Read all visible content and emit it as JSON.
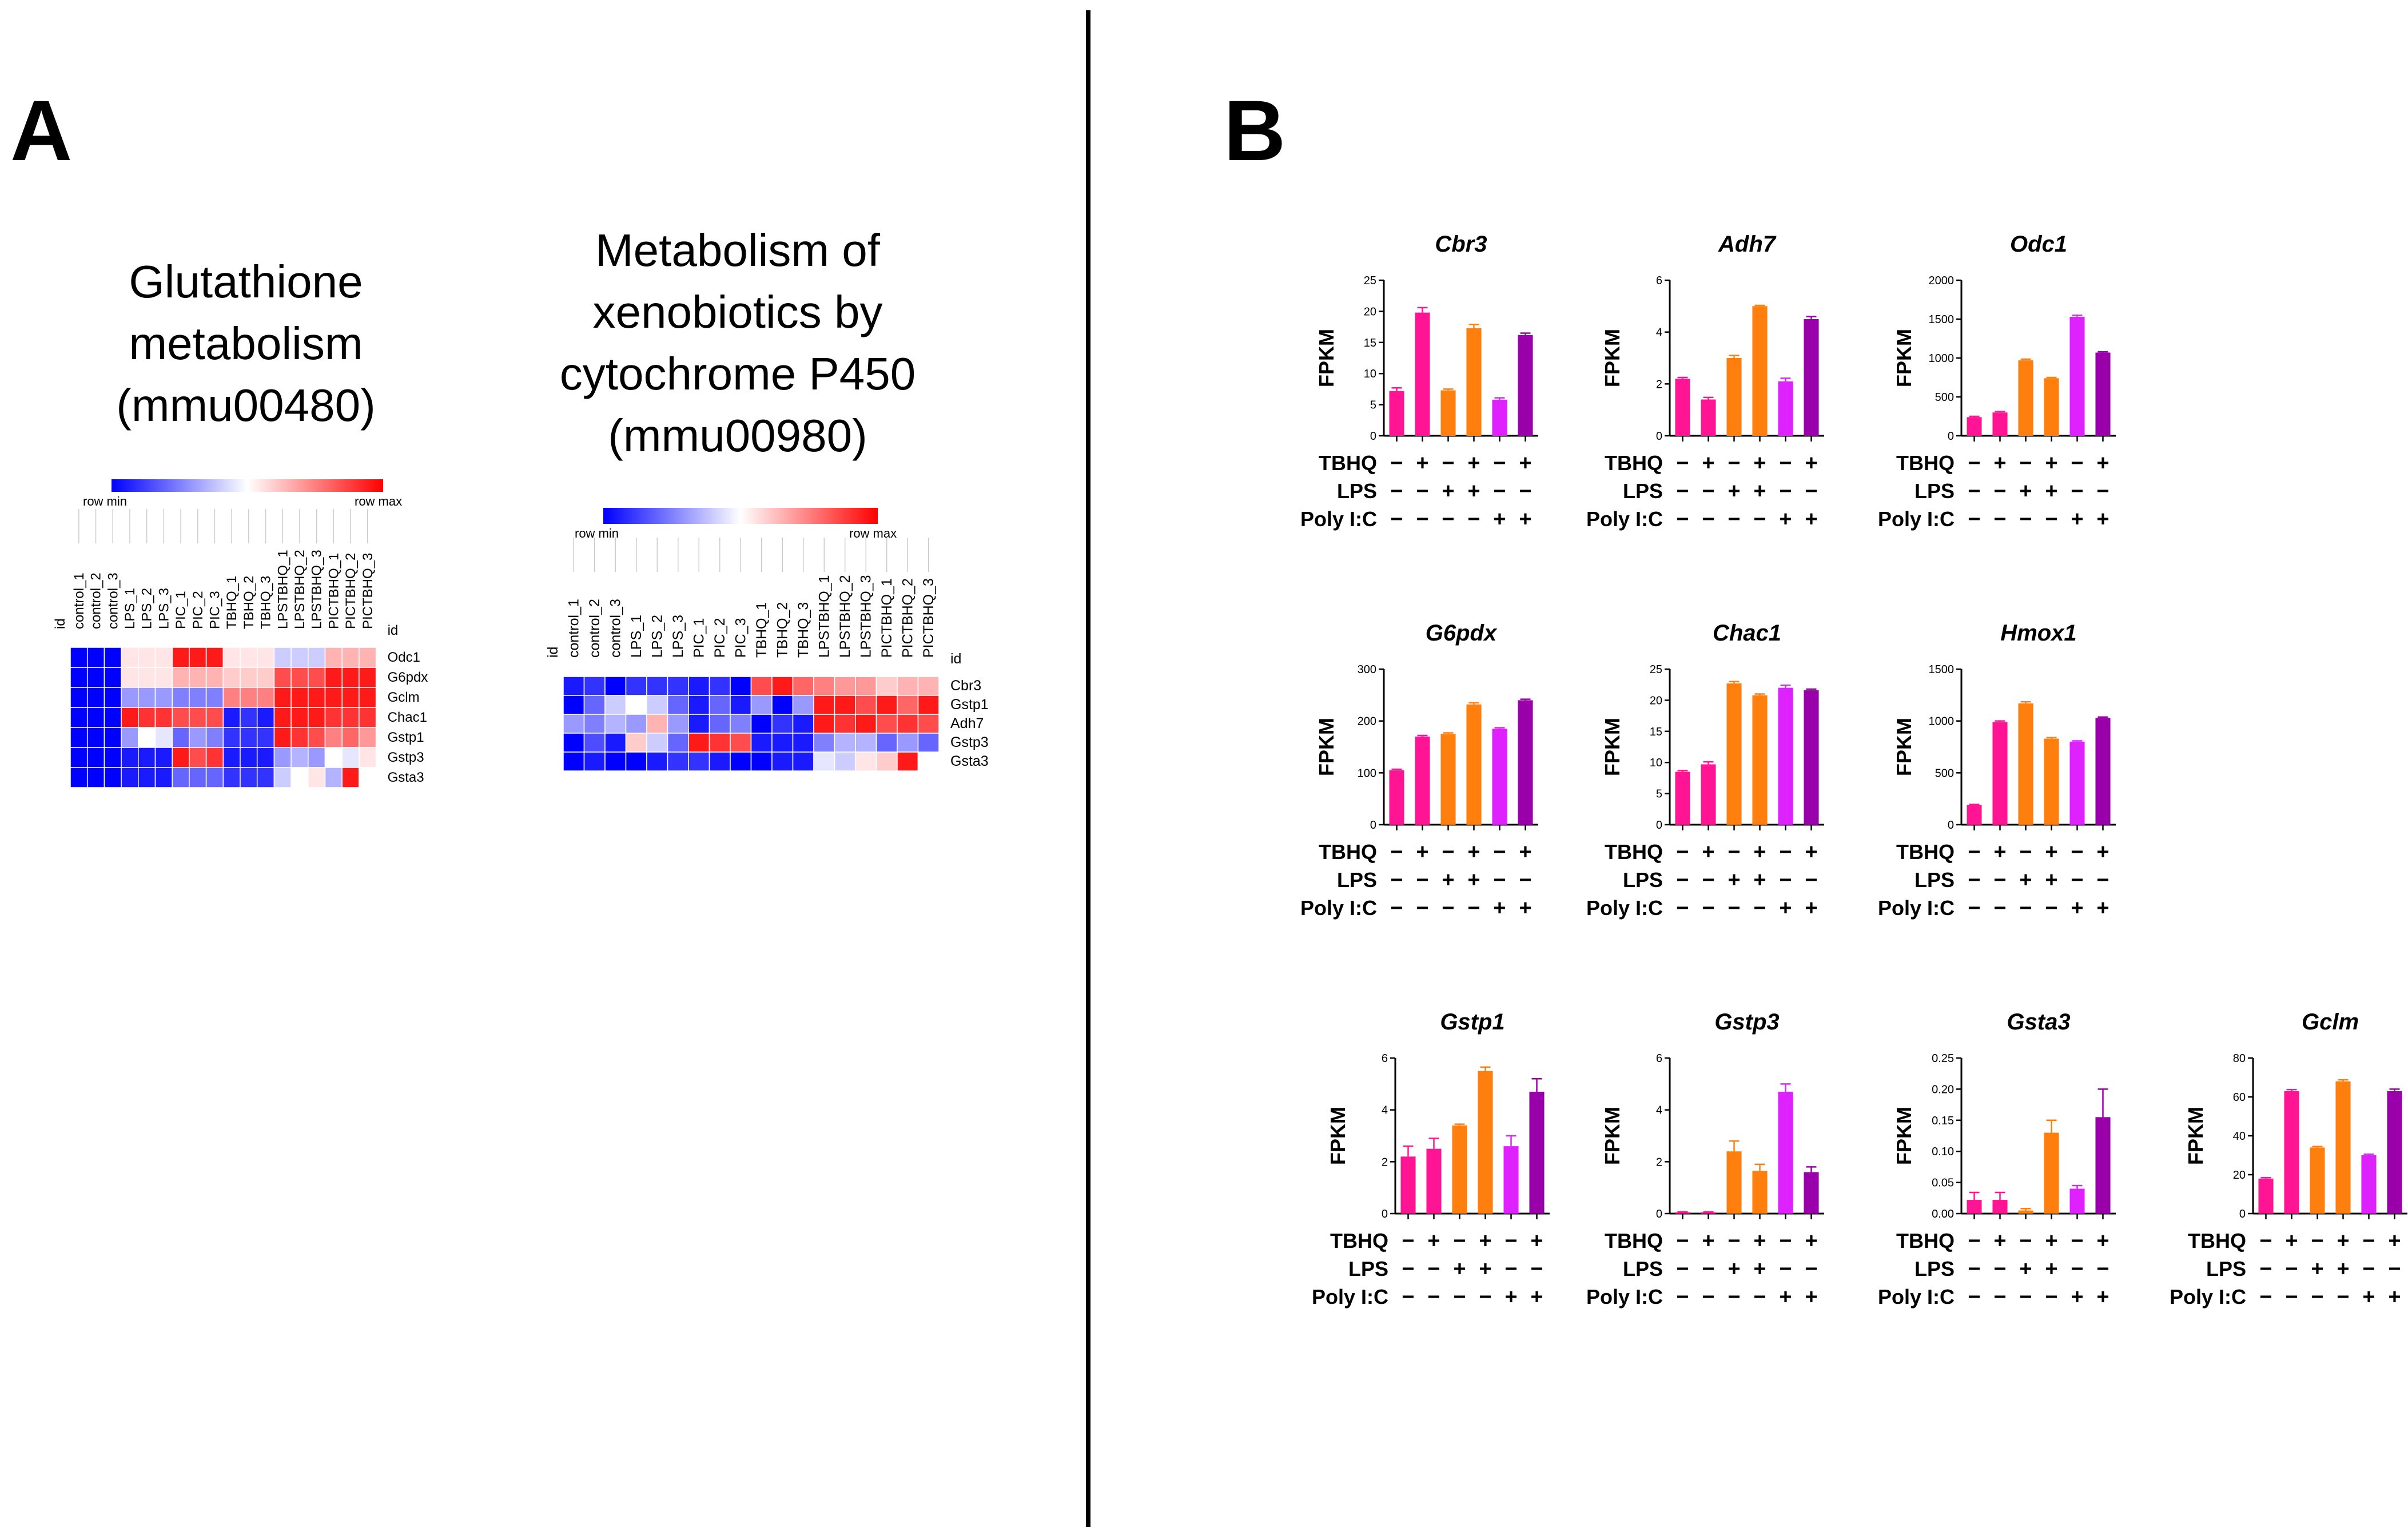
{
  "panels": {
    "a": {
      "letter": "A",
      "heatmaps": [
        {
          "title_lines": [
            "Glutathione",
            "metabolism",
            "(mmu00480)"
          ],
          "legend_min": "row min",
          "legend_max": "row max",
          "id_label": "id",
          "columns": [
            "control_1",
            "control_2",
            "control_3",
            "LPS_1",
            "LPS_2",
            "LPS_3",
            "PIC_1",
            "PIC_2",
            "PIC_3",
            "TBHQ_1",
            "TBHQ_2",
            "TBHQ_3",
            "LPSTBHQ_1",
            "LPSTBHQ_2",
            "LPSTBHQ_3",
            "PICTBHQ_1",
            "PICTBHQ_2",
            "PICTBHQ_3"
          ],
          "rows": [
            "Odc1",
            "G6pdx",
            "Gclm",
            "Chac1",
            "Gstp1",
            "Gstp3",
            "Gsta3"
          ],
          "values": [
            [
              0,
              0,
              0,
              0.55,
              0.55,
              0.55,
              0.95,
              0.95,
              0.95,
              0.55,
              0.55,
              0.55,
              0.4,
              0.4,
              0.4,
              0.65,
              0.65,
              0.65
            ],
            [
              0,
              0,
              0,
              0.55,
              0.55,
              0.55,
              0.65,
              0.65,
              0.65,
              0.6,
              0.6,
              0.6,
              0.85,
              0.85,
              0.85,
              0.95,
              0.95,
              0.95
            ],
            [
              0,
              0,
              0,
              0.3,
              0.3,
              0.3,
              0.25,
              0.25,
              0.25,
              0.75,
              0.75,
              0.75,
              0.95,
              0.95,
              0.95,
              0.95,
              0.95,
              0.95
            ],
            [
              0,
              0,
              0,
              0.95,
              0.9,
              0.9,
              0.85,
              0.85,
              0.85,
              0.05,
              0.1,
              0.05,
              0.95,
              0.95,
              0.95,
              0.9,
              0.9,
              0.9
            ],
            [
              0,
              0,
              0,
              0.3,
              0.5,
              0.45,
              0.2,
              0.3,
              0.25,
              0.1,
              0.1,
              0.1,
              0.95,
              0.9,
              0.85,
              0.75,
              0.8,
              0.7
            ],
            [
              0,
              0,
              0,
              0.05,
              0.05,
              0.05,
              0.95,
              0.85,
              0.9,
              0.05,
              0.05,
              0.05,
              0.3,
              0.35,
              0.3,
              0.5,
              0.45,
              0.55
            ],
            [
              0,
              0,
              0,
              0.05,
              0.05,
              0.05,
              0.2,
              0.2,
              0.2,
              0.1,
              0.1,
              0.1,
              0.4,
              0.5,
              0.55,
              0.35,
              0.95,
              0.5
            ]
          ]
        },
        {
          "title_lines": [
            "Metabolism of",
            "xenobiotics by",
            "cytochrome P450",
            "(mmu00980)"
          ],
          "legend_min": "row min",
          "legend_max": "row max",
          "id_label": "id",
          "columns": [
            "control_1",
            "control_2",
            "control_3",
            "LPS_1",
            "LPS_2",
            "LPS_3",
            "PIC_1",
            "PIC_2",
            "PIC_3",
            "TBHQ_1",
            "TBHQ_2",
            "TBHQ_3",
            "LPSTBHQ_1",
            "LPSTBHQ_2",
            "LPSTBHQ_3",
            "PICTBHQ_1",
            "PICTBHQ_2",
            "PICTBHQ_3"
          ],
          "rows": [
            "Cbr3",
            "Gstp1",
            "Adh7",
            "Gstp3",
            "Gsta3"
          ],
          "values": [
            [
              0.05,
              0.1,
              0.0,
              0.1,
              0.1,
              0.1,
              0.05,
              0.1,
              0.0,
              0.85,
              0.95,
              0.8,
              0.75,
              0.7,
              0.7,
              0.6,
              0.65,
              0.65
            ],
            [
              0.0,
              0.2,
              0.4,
              0.5,
              0.4,
              0.2,
              0.05,
              0.2,
              0.05,
              0.3,
              0.0,
              0.3,
              0.95,
              0.95,
              0.85,
              0.95,
              0.8,
              0.95
            ],
            [
              0.3,
              0.25,
              0.35,
              0.3,
              0.65,
              0.3,
              0.05,
              0.2,
              0.25,
              0.0,
              0.1,
              0.05,
              0.95,
              0.9,
              0.95,
              0.85,
              0.9,
              0.85
            ],
            [
              0.0,
              0.15,
              0.05,
              0.6,
              0.4,
              0.2,
              0.95,
              0.9,
              0.85,
              0.05,
              0.05,
              0.05,
              0.25,
              0.35,
              0.35,
              0.2,
              0.3,
              0.2
            ],
            [
              0.0,
              0.05,
              0.0,
              0.0,
              0.05,
              0.1,
              0.1,
              0.05,
              0.0,
              0.0,
              0.05,
              0.05,
              0.45,
              0.4,
              0.55,
              0.6,
              0.95,
              0.5
            ]
          ]
        }
      ]
    },
    "b": {
      "letter": "B"
    }
  },
  "colors": {
    "heat_low": "#0000ff",
    "heat_mid": "#ffffff",
    "heat_high": "#ff0000",
    "bars": [
      "#ff1493",
      "#ff1493",
      "#ff7f0e",
      "#ff7f0e",
      "#dd22ff",
      "#9900aa"
    ]
  },
  "chart_data": [
    {
      "type": "bar",
      "title": "Cbr3",
      "ylabel": "FPKM",
      "ylim": [
        0,
        25
      ],
      "yticks": [
        0,
        5,
        10,
        15,
        20,
        25
      ],
      "conditions": [
        {
          "name": "TBHQ",
          "values": [
            "−",
            "+",
            "−",
            "+",
            "−",
            "+"
          ]
        },
        {
          "name": "LPS",
          "values": [
            "−",
            "−",
            "+",
            "+",
            "−",
            "−"
          ]
        },
        {
          "name": "Poly I:C",
          "values": [
            "−",
            "−",
            "−",
            "−",
            "+",
            "+"
          ]
        }
      ],
      "values": [
        7.2,
        19.8,
        7.3,
        17.3,
        5.8,
        16.2
      ],
      "errors": [
        0.5,
        0.8,
        0.2,
        0.6,
        0.3,
        0.3
      ]
    },
    {
      "type": "bar",
      "title": "Adh7",
      "ylabel": "FPKM",
      "ylim": [
        0,
        6
      ],
      "yticks": [
        0,
        2,
        4,
        6
      ],
      "conditions": [
        {
          "name": "TBHQ",
          "values": [
            "−",
            "+",
            "−",
            "+",
            "−",
            "+"
          ]
        },
        {
          "name": "LPS",
          "values": [
            "−",
            "−",
            "+",
            "+",
            "−",
            "−"
          ]
        },
        {
          "name": "Poly I:C",
          "values": [
            "−",
            "−",
            "−",
            "−",
            "+",
            "+"
          ]
        }
      ],
      "values": [
        2.2,
        1.4,
        3.0,
        5.0,
        2.1,
        4.5
      ],
      "errors": [
        0.05,
        0.08,
        0.1,
        0.03,
        0.12,
        0.1
      ]
    },
    {
      "type": "bar",
      "title": "Odc1",
      "ylabel": "FPKM",
      "ylim": [
        0,
        2000
      ],
      "yticks": [
        0,
        500,
        1000,
        1500,
        2000
      ],
      "conditions": [
        {
          "name": "TBHQ",
          "values": [
            "−",
            "+",
            "−",
            "+",
            "−",
            "+"
          ]
        },
        {
          "name": "LPS",
          "values": [
            "−",
            "−",
            "+",
            "+",
            "−",
            "−"
          ]
        },
        {
          "name": "Poly I:C",
          "values": [
            "−",
            "−",
            "−",
            "−",
            "+",
            "+"
          ]
        }
      ],
      "values": [
        240,
        300,
        970,
        740,
        1530,
        1070
      ],
      "errors": [
        10,
        12,
        15,
        10,
        20,
        10
      ]
    },
    {
      "type": "bar",
      "title": "G6pdx",
      "ylabel": "FPKM",
      "ylim": [
        0,
        300
      ],
      "yticks": [
        0,
        100,
        200,
        300
      ],
      "conditions": [
        {
          "name": "TBHQ",
          "values": [
            "−",
            "+",
            "−",
            "+",
            "−",
            "+"
          ]
        },
        {
          "name": "LPS",
          "values": [
            "−",
            "−",
            "+",
            "+",
            "−",
            "−"
          ]
        },
        {
          "name": "Poly I:C",
          "values": [
            "−",
            "−",
            "−",
            "−",
            "+",
            "+"
          ]
        }
      ],
      "values": [
        105,
        170,
        175,
        232,
        185,
        240
      ],
      "errors": [
        2,
        2,
        2,
        3,
        2,
        2
      ]
    },
    {
      "type": "bar",
      "title": "Chac1",
      "ylabel": "FPKM",
      "ylim": [
        0,
        25
      ],
      "yticks": [
        0,
        5,
        10,
        15,
        20,
        25
      ],
      "conditions": [
        {
          "name": "TBHQ",
          "values": [
            "−",
            "+",
            "−",
            "+",
            "−",
            "+"
          ]
        },
        {
          "name": "LPS",
          "values": [
            "−",
            "−",
            "+",
            "+",
            "−",
            "−"
          ]
        },
        {
          "name": "Poly I:C",
          "values": [
            "−",
            "−",
            "−",
            "−",
            "+",
            "+"
          ]
        }
      ],
      "values": [
        8.5,
        9.7,
        22.7,
        20.8,
        22.0,
        21.6
      ],
      "errors": [
        0.2,
        0.4,
        0.3,
        0.2,
        0.4,
        0.2
      ]
    },
    {
      "type": "bar",
      "title": "Hmox1",
      "ylabel": "FPKM",
      "ylim": [
        0,
        1500
      ],
      "yticks": [
        0,
        500,
        1000,
        1500
      ],
      "conditions": [
        {
          "name": "TBHQ",
          "values": [
            "−",
            "+",
            "−",
            "+",
            "−",
            "+"
          ]
        },
        {
          "name": "LPS",
          "values": [
            "−",
            "−",
            "+",
            "+",
            "−",
            "−"
          ]
        },
        {
          "name": "Poly I:C",
          "values": [
            "−",
            "−",
            "−",
            "−",
            "+",
            "+"
          ]
        }
      ],
      "values": [
        190,
        990,
        1170,
        830,
        800,
        1030
      ],
      "errors": [
        5,
        10,
        15,
        10,
        8,
        8
      ]
    },
    {
      "type": "bar",
      "title": "Gstp1",
      "ylabel": "FPKM",
      "ylim": [
        0,
        6
      ],
      "yticks": [
        0,
        2,
        4,
        6
      ],
      "conditions": [
        {
          "name": "TBHQ",
          "values": [
            "−",
            "+",
            "−",
            "+",
            "−",
            "+"
          ]
        },
        {
          "name": "LPS",
          "values": [
            "−",
            "−",
            "+",
            "+",
            "−",
            "−"
          ]
        },
        {
          "name": "Poly I:C",
          "values": [
            "−",
            "−",
            "−",
            "−",
            "+",
            "+"
          ]
        }
      ],
      "values": [
        2.2,
        2.5,
        3.4,
        5.5,
        2.6,
        4.7
      ],
      "errors": [
        0.4,
        0.4,
        0.05,
        0.15,
        0.4,
        0.5
      ]
    },
    {
      "type": "bar",
      "title": "Gstp3",
      "ylabel": "FPKM",
      "ylim": [
        0,
        6
      ],
      "yticks": [
        0,
        2,
        4,
        6
      ],
      "conditions": [
        {
          "name": "TBHQ",
          "values": [
            "−",
            "+",
            "−",
            "+",
            "−",
            "+"
          ]
        },
        {
          "name": "LPS",
          "values": [
            "−",
            "−",
            "+",
            "+",
            "−",
            "−"
          ]
        },
        {
          "name": "Poly I:C",
          "values": [
            "−",
            "−",
            "−",
            "−",
            "+",
            "+"
          ]
        }
      ],
      "values": [
        0.05,
        0.05,
        2.4,
        1.65,
        4.7,
        1.6
      ],
      "errors": [
        0.02,
        0.02,
        0.4,
        0.25,
        0.3,
        0.2
      ]
    },
    {
      "type": "bar",
      "title": "Gsta3",
      "ylabel": "FPKM",
      "ylim": [
        0,
        0.25
      ],
      "yticks": [
        "0.00",
        "0.05",
        "0.10",
        "0.15",
        "0.20",
        "0.25"
      ],
      "conditions": [
        {
          "name": "TBHQ",
          "values": [
            "−",
            "+",
            "−",
            "+",
            "−",
            "+"
          ]
        },
        {
          "name": "LPS",
          "values": [
            "−",
            "−",
            "+",
            "+",
            "−",
            "−"
          ]
        },
        {
          "name": "Poly I:C",
          "values": [
            "−",
            "−",
            "−",
            "−",
            "+",
            "+"
          ]
        }
      ],
      "values": [
        0.022,
        0.022,
        0.005,
        0.13,
        0.04,
        0.155
      ],
      "errors": [
        0.012,
        0.012,
        0.003,
        0.02,
        0.005,
        0.045
      ]
    },
    {
      "type": "bar",
      "title": "Gclm",
      "ylabel": "FPKM",
      "ylim": [
        0,
        80
      ],
      "yticks": [
        0,
        20,
        40,
        60,
        80
      ],
      "conditions": [
        {
          "name": "TBHQ",
          "values": [
            "−",
            "+",
            "−",
            "+",
            "−",
            "+"
          ]
        },
        {
          "name": "LPS",
          "values": [
            "−",
            "−",
            "+",
            "+",
            "−",
            "−"
          ]
        },
        {
          "name": "Poly I:C",
          "values": [
            "−",
            "−",
            "−",
            "−",
            "+",
            "+"
          ]
        }
      ],
      "values": [
        18,
        63,
        34,
        68,
        30,
        63
      ],
      "errors": [
        0.5,
        0.8,
        0.5,
        0.8,
        0.5,
        1.0
      ]
    }
  ]
}
